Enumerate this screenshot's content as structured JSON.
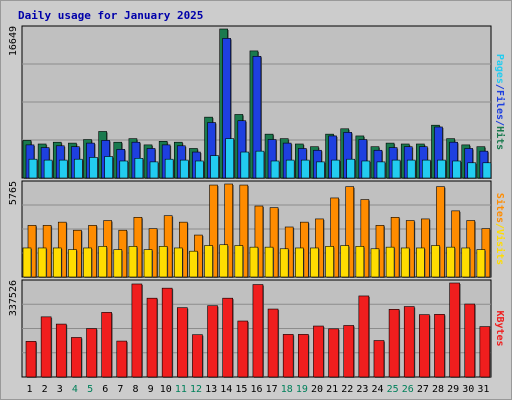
{
  "chart_data": {
    "type": "bar",
    "title": "Daily usage for January 2025",
    "categories": [
      "1",
      "2",
      "3",
      "4",
      "5",
      "6",
      "7",
      "8",
      "9",
      "10",
      "11",
      "12",
      "13",
      "14",
      "15",
      "16",
      "17",
      "18",
      "19",
      "20",
      "21",
      "22",
      "23",
      "24",
      "25",
      "26",
      "27",
      "28",
      "29",
      "30",
      "31"
    ],
    "weekend_days": [
      "4",
      "5",
      "11",
      "12",
      "18",
      "19",
      "25",
      "26"
    ],
    "panels": [
      {
        "id": "hits-files-pages",
        "ymax_label": "16649",
        "ylim": [
          0,
          16649
        ],
        "series": [
          {
            "name": "Hits",
            "color": "#1a7a4e",
            "values": [
              4200,
              3800,
              4000,
              3900,
              4300,
              5200,
              4000,
              4400,
              3700,
              4100,
              4000,
              3300,
              6800,
              16649,
              7100,
              14200,
              4900,
              4400,
              3800,
              3500,
              4900,
              5500,
              4700,
              3500,
              3900,
              3800,
              3800,
              5900,
              4400,
              3700,
              3500
            ]
          },
          {
            "name": "Files",
            "color": "#1e40e0",
            "values": [
              3700,
              3400,
              3600,
              3500,
              3900,
              4200,
              3200,
              4000,
              3300,
              3700,
              3600,
              2900,
              6200,
              15600,
              6400,
              13600,
              4300,
              3900,
              3300,
              3100,
              4700,
              5100,
              4300,
              3100,
              3400,
              3500,
              3500,
              5700,
              4000,
              3300,
              3000
            ]
          },
          {
            "name": "Pages",
            "color": "#22ccf0",
            "values": [
              2100,
              2000,
              2000,
              2100,
              2300,
              2400,
              1900,
              2200,
              1800,
              2100,
              2000,
              1900,
              2500,
              4400,
              2900,
              3000,
              1900,
              2000,
              2000,
              1800,
              2000,
              2100,
              1900,
              1800,
              2000,
              2000,
              2000,
              2000,
              1900,
              1700,
              1700
            ]
          }
        ]
      },
      {
        "id": "sites-visits",
        "ymax_label": "5765",
        "ylim": [
          0,
          5765
        ],
        "series": [
          {
            "name": "Sites",
            "color": "#ff8c00",
            "values": [
              3200,
              3200,
              3400,
              2900,
              3200,
              3500,
              2900,
              3700,
              3000,
              3800,
              3400,
              2600,
              5700,
              5765,
              5700,
              4400,
              4300,
              3100,
              3400,
              3600,
              4900,
              5600,
              4800,
              3200,
              3700,
              3500,
              3600,
              5600,
              4100,
              3500,
              3000
            ]
          },
          {
            "name": "Visits",
            "color": "#ffdd00",
            "values": [
              1800,
              1800,
              1800,
              1700,
              1800,
              1900,
              1700,
              1900,
              1700,
              1900,
              1800,
              1600,
              1950,
              2000,
              1950,
              1850,
              1850,
              1750,
              1800,
              1800,
              1900,
              1950,
              1900,
              1750,
              1850,
              1800,
              1800,
              1950,
              1850,
              1800,
              1700
            ]
          }
        ]
      },
      {
        "id": "kbytes",
        "ymax_label": "337526",
        "ylim": [
          0,
          337526
        ],
        "series": [
          {
            "name": "KBytes",
            "color": "#f01e1e",
            "values": [
              128000,
              216000,
              190000,
              142000,
              174000,
              232000,
              129000,
              334000,
              283000,
              319000,
              249000,
              152000,
              256000,
              283000,
              201000,
              332000,
              244000,
              153000,
              153000,
              183000,
              173000,
              185000,
              291000,
              131000,
              243000,
              253000,
              224000,
              225000,
              337526,
              262000,
              181000
            ]
          }
        ]
      }
    ],
    "side_labels": [
      {
        "panel": "hits-files-pages",
        "parts": [
          {
            "text": "Pages",
            "color": "#22ccf0"
          },
          {
            "text": "/",
            "color": "#1e40e0"
          },
          {
            "text": "Files",
            "color": "#1e40e0"
          },
          {
            "text": "/",
            "color": "#1e40e0"
          },
          {
            "text": "Hits",
            "color": "#1a7a4e"
          }
        ]
      },
      {
        "panel": "sites-visits",
        "parts": [
          {
            "text": "Sites",
            "color": "#ff8c00"
          },
          {
            "text": "/",
            "color": "#ffdd00"
          },
          {
            "text": "Visits",
            "color": "#ffdd00"
          }
        ]
      },
      {
        "panel": "kbytes",
        "parts": [
          {
            "text": "KBytes",
            "color": "#f01e1e"
          }
        ]
      }
    ],
    "weekday_tick_color": "#000000",
    "weekend_tick_color": "#00805a",
    "grid": true
  }
}
